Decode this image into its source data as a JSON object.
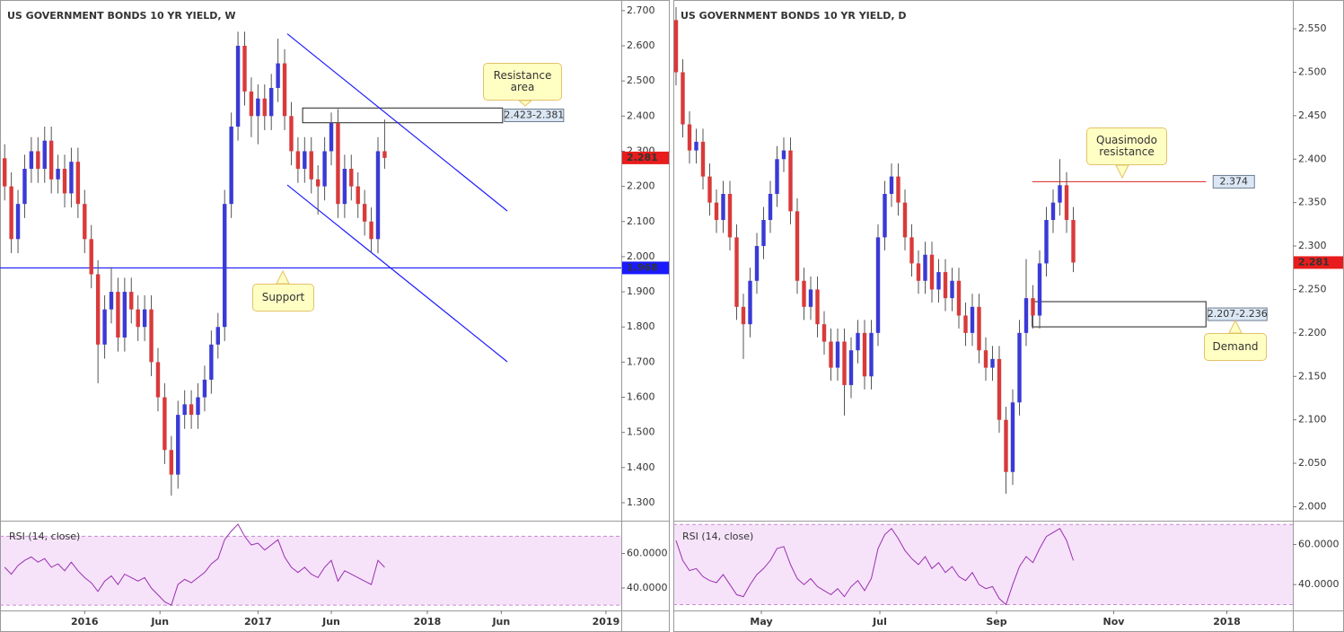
{
  "chart_data": [
    {
      "type": "candlestick",
      "title": "US GOVERNMENT BONDS 10 YR YIELD, W",
      "up_color": "#3a3ad6",
      "down_color": "#d93a3a",
      "xlim": [
        -0.7,
        92.5
      ],
      "ylim": [
        1.254,
        2.72
      ],
      "xticks": [
        {
          "value": 12,
          "label": "2016"
        },
        {
          "value": 23.3,
          "label": "Jun"
        },
        {
          "value": 38,
          "label": "2017"
        },
        {
          "value": 49,
          "label": "Jun"
        },
        {
          "value": 63.4,
          "label": "2018"
        },
        {
          "value": 74.5,
          "label": "Jun"
        },
        {
          "value": 90.2,
          "label": "2019"
        }
      ],
      "yticks": [
        {
          "value": 1.3,
          "label": "1.300"
        },
        {
          "value": 1.4,
          "label": "1.400"
        },
        {
          "value": 1.5,
          "label": "1.500"
        },
        {
          "value": 1.6,
          "label": "1.600"
        },
        {
          "value": 1.7,
          "label": "1.700"
        },
        {
          "value": 1.8,
          "label": "1.800"
        },
        {
          "value": 1.9,
          "label": "1.900"
        },
        {
          "value": 2.0,
          "label": "2.000"
        },
        {
          "value": 2.1,
          "label": "2.100"
        },
        {
          "value": 2.2,
          "label": "2.200"
        },
        {
          "value": 2.3,
          "label": "2.300"
        },
        {
          "value": 2.4,
          "label": "2.400"
        },
        {
          "value": 2.5,
          "label": "2.500"
        },
        {
          "value": 2.6,
          "label": "2.600"
        },
        {
          "value": 2.7,
          "label": "2.700"
        }
      ],
      "candles": [
        [
          2.28,
          2.32,
          2.16,
          2.2
        ],
        [
          2.2,
          2.24,
          2.01,
          2.05
        ],
        [
          2.05,
          2.19,
          2.01,
          2.15
        ],
        [
          2.15,
          2.29,
          2.11,
          2.25
        ],
        [
          2.25,
          2.34,
          2.21,
          2.3
        ],
        [
          2.3,
          2.34,
          2.21,
          2.25
        ],
        [
          2.25,
          2.37,
          2.21,
          2.33
        ],
        [
          2.33,
          2.37,
          2.18,
          2.22
        ],
        [
          2.22,
          2.29,
          2.18,
          2.25
        ],
        [
          2.25,
          2.29,
          2.14,
          2.18
        ],
        [
          2.18,
          2.31,
          2.14,
          2.27
        ],
        [
          2.27,
          2.31,
          2.11,
          2.15
        ],
        [
          2.15,
          2.19,
          2.01,
          2.05
        ],
        [
          2.05,
          2.09,
          1.91,
          1.95
        ],
        [
          1.95,
          1.99,
          1.64,
          1.75
        ],
        [
          1.75,
          1.89,
          1.71,
          1.85
        ],
        [
          1.85,
          1.97,
          1.81,
          1.9
        ],
        [
          1.9,
          1.94,
          1.73,
          1.77
        ],
        [
          1.77,
          1.94,
          1.73,
          1.9
        ],
        [
          1.9,
          1.94,
          1.81,
          1.85
        ],
        [
          1.85,
          1.89,
          1.76,
          1.8
        ],
        [
          1.8,
          1.89,
          1.76,
          1.85
        ],
        [
          1.85,
          1.89,
          1.66,
          1.7
        ],
        [
          1.7,
          1.74,
          1.56,
          1.6
        ],
        [
          1.6,
          1.64,
          1.41,
          1.45
        ],
        [
          1.45,
          1.49,
          1.32,
          1.38
        ],
        [
          1.38,
          1.59,
          1.34,
          1.55
        ],
        [
          1.55,
          1.62,
          1.51,
          1.58
        ],
        [
          1.58,
          1.62,
          1.51,
          1.55
        ],
        [
          1.55,
          1.64,
          1.51,
          1.6
        ],
        [
          1.6,
          1.69,
          1.56,
          1.65
        ],
        [
          1.65,
          1.79,
          1.61,
          1.75
        ],
        [
          1.75,
          1.84,
          1.71,
          1.8
        ],
        [
          1.8,
          2.19,
          1.76,
          2.15
        ],
        [
          2.15,
          2.41,
          2.11,
          2.37
        ],
        [
          2.37,
          2.64,
          2.33,
          2.6
        ],
        [
          2.6,
          2.64,
          2.43,
          2.47
        ],
        [
          2.47,
          2.51,
          2.34,
          2.4
        ],
        [
          2.4,
          2.49,
          2.32,
          2.45
        ],
        [
          2.45,
          2.49,
          2.36,
          2.4
        ],
        [
          2.4,
          2.52,
          2.36,
          2.48
        ],
        [
          2.48,
          2.62,
          2.44,
          2.55
        ],
        [
          2.55,
          2.59,
          2.36,
          2.4
        ],
        [
          2.4,
          2.44,
          2.26,
          2.3
        ],
        [
          2.3,
          2.34,
          2.21,
          2.25
        ],
        [
          2.25,
          2.34,
          2.21,
          2.3
        ],
        [
          2.3,
          2.34,
          2.18,
          2.22
        ],
        [
          2.22,
          2.26,
          2.12,
          2.2
        ],
        [
          2.2,
          2.34,
          2.16,
          2.3
        ],
        [
          2.3,
          2.41,
          2.26,
          2.38
        ],
        [
          2.38,
          2.42,
          2.11,
          2.15
        ],
        [
          2.15,
          2.29,
          2.11,
          2.25
        ],
        [
          2.25,
          2.29,
          2.16,
          2.2
        ],
        [
          2.2,
          2.24,
          2.11,
          2.15
        ],
        [
          2.15,
          2.19,
          2.06,
          2.1
        ],
        [
          2.1,
          2.14,
          2.01,
          2.05
        ],
        [
          2.05,
          2.34,
          2.01,
          2.3
        ],
        [
          2.3,
          2.39,
          2.25,
          2.281
        ]
      ],
      "last_price": {
        "value": 2.281,
        "label": "2.281"
      },
      "levels": [
        {
          "value": 1.968,
          "label": "1.968",
          "color": "#1a1aff"
        }
      ],
      "zones": [
        {
          "top": 2.423,
          "bottom": 2.381,
          "x": [
            44.7,
            74.7
          ],
          "label": "2.423-2.381"
        }
      ],
      "trendlines": [
        {
          "x": [
            42.4,
            75.4
          ],
          "y": [
            2.634,
            2.13
          ],
          "color": "#2020ff"
        },
        {
          "x": [
            42.4,
            75.4
          ],
          "y": [
            2.204,
            1.701
          ],
          "color": "#2020ff"
        }
      ],
      "callouts": [
        "Resistance area",
        "Support"
      ],
      "rsi": {
        "title": "RSI (14, close)",
        "color": "#9a2fb0",
        "ylim": [
          28,
          78
        ],
        "bands": [
          30,
          70
        ],
        "yticks": [
          {
            "value": 40,
            "label": "40.0000"
          },
          {
            "value": 60,
            "label": "60.0000"
          }
        ],
        "values": [
          52,
          48,
          53,
          56,
          58,
          55,
          57,
          52,
          54,
          50,
          55,
          50,
          46,
          43,
          38,
          44,
          47,
          42,
          48,
          46,
          44,
          46,
          40,
          36,
          32,
          30,
          42,
          45,
          43,
          46,
          49,
          54,
          57,
          68,
          73,
          77,
          70,
          65,
          66,
          62,
          65,
          68,
          58,
          52,
          49,
          52,
          48,
          46,
          52,
          56,
          44,
          50,
          48,
          46,
          44,
          42,
          56,
          52
        ]
      }
    },
    {
      "type": "candlestick",
      "title": "US GOVERNMENT BONDS 10 YR YIELD, D",
      "up_color": "#3a3ad6",
      "down_color": "#d93a3a",
      "xlim": [
        -0.4,
        91.6
      ],
      "ylim": [
        1.986,
        2.579
      ],
      "xticks": [
        {
          "value": 12.67,
          "label": "May"
        },
        {
          "value": 30.27,
          "label": "Jul"
        },
        {
          "value": 47.6,
          "label": "Sep"
        },
        {
          "value": 65,
          "label": "Nov"
        },
        {
          "value": 81.8,
          "label": "2018"
        }
      ],
      "yticks": [
        {
          "value": 2.0,
          "label": "2.000"
        },
        {
          "value": 2.05,
          "label": "2.050"
        },
        {
          "value": 2.1,
          "label": "2.100"
        },
        {
          "value": 2.15,
          "label": "2.150"
        },
        {
          "value": 2.2,
          "label": "2.200"
        },
        {
          "value": 2.25,
          "label": "2.250"
        },
        {
          "value": 2.3,
          "label": "2.300"
        },
        {
          "value": 2.35,
          "label": "2.350"
        },
        {
          "value": 2.4,
          "label": "2.400"
        },
        {
          "value": 2.45,
          "label": "2.450"
        },
        {
          "value": 2.5,
          "label": "2.500"
        },
        {
          "value": 2.55,
          "label": "2.550"
        }
      ],
      "candles": [
        [
          2.56,
          2.575,
          2.485,
          2.5
        ],
        [
          2.5,
          2.515,
          2.425,
          2.44
        ],
        [
          2.44,
          2.455,
          2.395,
          2.41
        ],
        [
          2.41,
          2.435,
          2.395,
          2.42
        ],
        [
          2.42,
          2.435,
          2.365,
          2.38
        ],
        [
          2.38,
          2.395,
          2.335,
          2.35
        ],
        [
          2.35,
          2.365,
          2.315,
          2.33
        ],
        [
          2.33,
          2.375,
          2.315,
          2.36
        ],
        [
          2.36,
          2.375,
          2.295,
          2.31
        ],
        [
          2.31,
          2.325,
          2.215,
          2.23
        ],
        [
          2.23,
          2.245,
          2.17,
          2.21
        ],
        [
          2.21,
          2.275,
          2.195,
          2.26
        ],
        [
          2.26,
          2.315,
          2.245,
          2.3
        ],
        [
          2.3,
          2.345,
          2.285,
          2.33
        ],
        [
          2.33,
          2.375,
          2.315,
          2.36
        ],
        [
          2.36,
          2.415,
          2.345,
          2.4
        ],
        [
          2.4,
          2.425,
          2.385,
          2.41
        ],
        [
          2.41,
          2.425,
          2.325,
          2.34
        ],
        [
          2.34,
          2.355,
          2.245,
          2.26
        ],
        [
          2.26,
          2.275,
          2.215,
          2.23
        ],
        [
          2.23,
          2.265,
          2.215,
          2.25
        ],
        [
          2.25,
          2.265,
          2.195,
          2.21
        ],
        [
          2.21,
          2.225,
          2.175,
          2.19
        ],
        [
          2.19,
          2.205,
          2.145,
          2.16
        ],
        [
          2.16,
          2.205,
          2.145,
          2.19
        ],
        [
          2.19,
          2.205,
          2.105,
          2.14
        ],
        [
          2.14,
          2.195,
          2.125,
          2.18
        ],
        [
          2.18,
          2.215,
          2.165,
          2.2
        ],
        [
          2.2,
          2.215,
          2.135,
          2.15
        ],
        [
          2.15,
          2.215,
          2.135,
          2.2
        ],
        [
          2.2,
          2.325,
          2.185,
          2.31
        ],
        [
          2.31,
          2.375,
          2.295,
          2.36
        ],
        [
          2.36,
          2.395,
          2.345,
          2.38
        ],
        [
          2.38,
          2.395,
          2.335,
          2.35
        ],
        [
          2.35,
          2.365,
          2.295,
          2.31
        ],
        [
          2.31,
          2.325,
          2.265,
          2.28
        ],
        [
          2.28,
          2.295,
          2.245,
          2.26
        ],
        [
          2.26,
          2.305,
          2.245,
          2.29
        ],
        [
          2.29,
          2.305,
          2.235,
          2.25
        ],
        [
          2.25,
          2.285,
          2.235,
          2.27
        ],
        [
          2.27,
          2.285,
          2.225,
          2.24
        ],
        [
          2.24,
          2.275,
          2.225,
          2.26
        ],
        [
          2.26,
          2.275,
          2.205,
          2.22
        ],
        [
          2.22,
          2.235,
          2.185,
          2.2
        ],
        [
          2.2,
          2.245,
          2.185,
          2.23
        ],
        [
          2.23,
          2.245,
          2.165,
          2.18
        ],
        [
          2.18,
          2.195,
          2.145,
          2.16
        ],
        [
          2.16,
          2.185,
          2.145,
          2.17
        ],
        [
          2.17,
          2.185,
          2.085,
          2.1
        ],
        [
          2.1,
          2.115,
          2.015,
          2.04
        ],
        [
          2.04,
          2.135,
          2.025,
          2.12
        ],
        [
          2.12,
          2.215,
          2.105,
          2.2
        ],
        [
          2.2,
          2.285,
          2.185,
          2.24
        ],
        [
          2.24,
          2.255,
          2.205,
          2.22
        ],
        [
          2.22,
          2.295,
          2.205,
          2.28
        ],
        [
          2.28,
          2.345,
          2.265,
          2.33
        ],
        [
          2.33,
          2.365,
          2.315,
          2.35
        ],
        [
          2.35,
          2.4,
          2.335,
          2.37
        ],
        [
          2.37,
          2.385,
          2.315,
          2.33
        ],
        [
          2.33,
          2.345,
          2.27,
          2.281
        ]
      ],
      "last_price": {
        "value": 2.281,
        "label": "2.281"
      },
      "levels": [
        {
          "value": 2.374,
          "label": "2.374",
          "color": "#e03c3c",
          "x": [
            52.9,
            78.7
          ]
        }
      ],
      "zones": [
        {
          "top": 2.236,
          "bottom": 2.207,
          "x": [
            52.9,
            78.7
          ],
          "label": "2.207-2.236"
        }
      ],
      "trendlines": [],
      "callouts": [
        "Quasimodo resistance",
        "Demand"
      ],
      "rsi": {
        "title": "RSI (14, close)",
        "color": "#9a2fb0",
        "ylim": [
          28,
          71
        ],
        "bands": [
          30,
          70
        ],
        "yticks": [
          {
            "value": 40,
            "label": "40.0000"
          },
          {
            "value": 60,
            "label": "60.0000"
          }
        ],
        "values": [
          62,
          52,
          47,
          48,
          44,
          42,
          41,
          45,
          40,
          35,
          34,
          40,
          45,
          48,
          52,
          58,
          59,
          50,
          43,
          40,
          43,
          39,
          37,
          35,
          38,
          34,
          39,
          42,
          37,
          43,
          58,
          65,
          68,
          63,
          57,
          53,
          50,
          54,
          48,
          51,
          46,
          49,
          44,
          42,
          46,
          40,
          38,
          39,
          33,
          30,
          40,
          49,
          54,
          51,
          58,
          64,
          66,
          68,
          62,
          52
        ]
      }
    }
  ]
}
